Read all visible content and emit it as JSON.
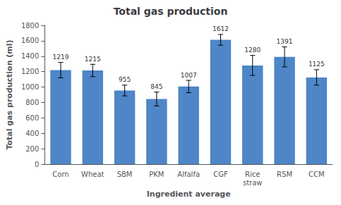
{
  "chart_data": {
    "type": "bar",
    "title": "Total gas production",
    "categories": [
      "Corn",
      "Wheat",
      "SBM",
      "PKM",
      "Alfalfa",
      "CGF",
      "Rice\nstraw",
      "RSM",
      "CCM"
    ],
    "values": [
      1219,
      1215,
      955,
      845,
      1007,
      1612,
      1280,
      1391,
      1125
    ],
    "errors": [
      100,
      80,
      70,
      90,
      80,
      70,
      130,
      130,
      100
    ],
    "color": "#4E86C8",
    "xlabel": "Ingredient average",
    "ylabel": "Total gas production (ml)",
    "ylim": [
      0,
      1800
    ],
    "yticks": [
      0,
      200,
      400,
      600,
      800,
      1000,
      1200,
      1400,
      1600,
      1800
    ],
    "data_labels": true,
    "grid": false
  }
}
